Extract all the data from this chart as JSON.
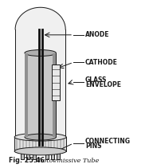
{
  "bg_color": "#ffffff",
  "line_color": "#1a1a1a",
  "fig_width": 1.92,
  "fig_height": 2.11,
  "dpi": 100,
  "labels": {
    "anode": "ANODE",
    "cathode": "CATHODE",
    "glass_env_1": "GLASS",
    "glass_env_2": "ENVELOPE",
    "conn_pins_1": "CONNECTING",
    "conn_pins_2": "PINS"
  },
  "caption_fig": "Fig. 25.46",
  "caption_name": "Photoemissive Tube"
}
